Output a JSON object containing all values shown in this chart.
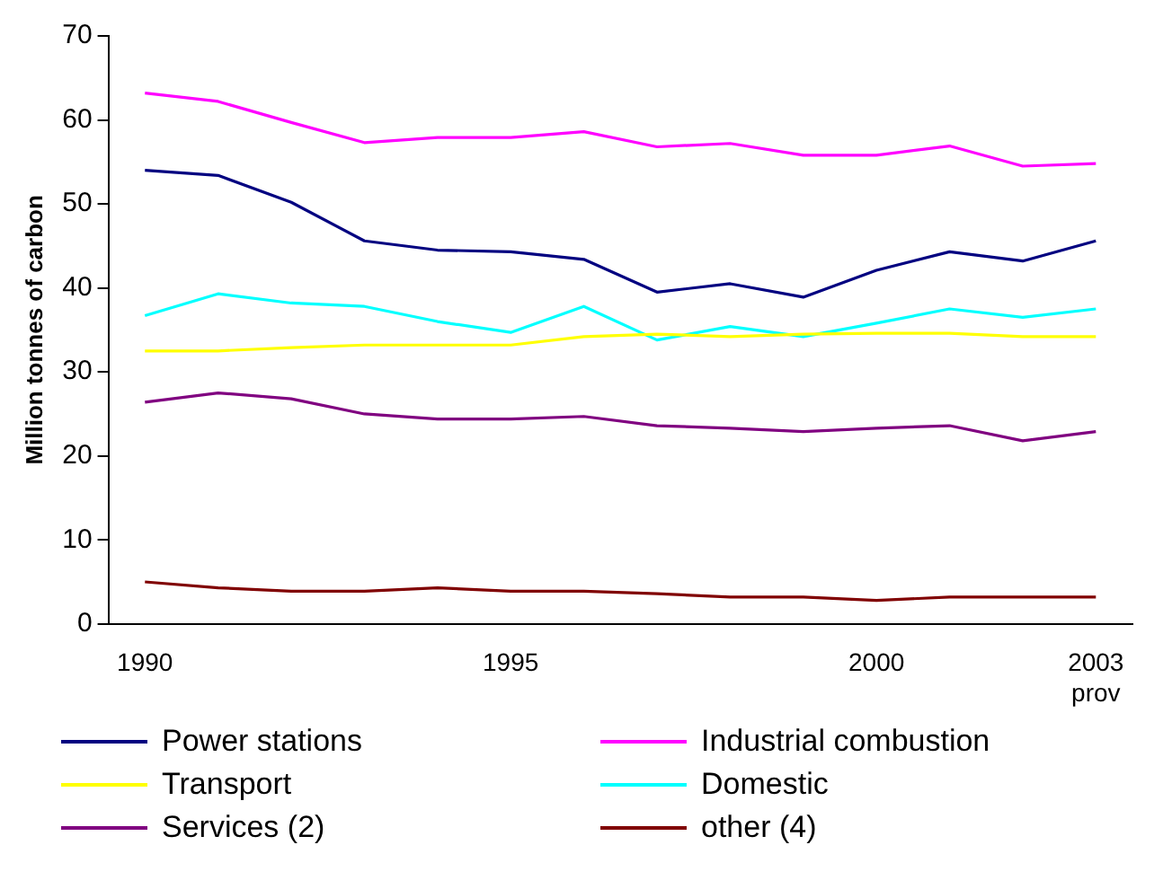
{
  "chart_data": {
    "type": "line",
    "ylabel": "Million tonnes of carbon",
    "categories": [
      "1990",
      null,
      null,
      null,
      null,
      "1995",
      null,
      null,
      null,
      null,
      "2000",
      null,
      null,
      "2003 prov"
    ],
    "series": [
      {
        "name": "Power stations",
        "color": "#000080",
        "values": [
          54,
          53.4,
          50.2,
          45.6,
          44.5,
          44.3,
          43.4,
          39.5,
          40.5,
          38.9,
          42.1,
          44.3,
          43.2,
          45.6
        ]
      },
      {
        "name": "Industrial combustion",
        "color": "#ff00ff",
        "values": [
          63.2,
          62.2,
          59.7,
          57.3,
          57.9,
          57.9,
          58.6,
          56.8,
          57.2,
          55.8,
          55.8,
          56.9,
          54.5,
          54.8
        ]
      },
      {
        "name": "Transport",
        "color": "#ffff00",
        "values": [
          32.5,
          32.5,
          32.9,
          33.2,
          33.2,
          33.2,
          34.2,
          34.5,
          34.2,
          34.5,
          34.6,
          34.6,
          34.2,
          34.2
        ]
      },
      {
        "name": "Domestic",
        "color": "#00ffff",
        "values": [
          36.7,
          39.3,
          38.2,
          37.8,
          36,
          34.7,
          37.8,
          33.8,
          35.4,
          34.2,
          35.8,
          37.5,
          36.5,
          37.5
        ]
      },
      {
        "name": "Services (2)",
        "color": "#800080",
        "values": [
          26.4,
          27.5,
          26.8,
          25,
          24.4,
          24.4,
          24.7,
          23.6,
          23.3,
          22.9,
          23.3,
          23.6,
          21.8,
          22.9
        ]
      },
      {
        "name": "other (4)",
        "color": "#800000",
        "values": [
          5,
          4.3,
          3.9,
          3.9,
          4.3,
          3.9,
          3.9,
          3.6,
          3.2,
          3.2,
          2.8,
          3.2,
          3.2,
          3.2
        ]
      }
    ],
    "ylim": [
      0,
      70
    ],
    "yticks": [
      0,
      10,
      20,
      30,
      40,
      50,
      60,
      70
    ],
    "grid": false,
    "legend": "bottom",
    "marker": "none",
    "line_style": "solid"
  }
}
